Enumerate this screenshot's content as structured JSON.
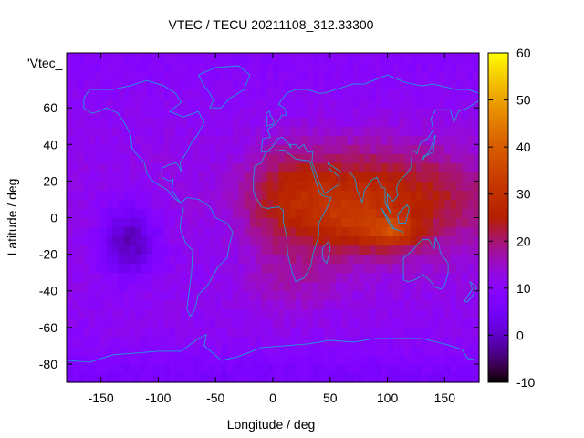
{
  "chart_data": {
    "type": "heatmap",
    "title": "VTEC / TECU 20211108_312.33300",
    "xlabel": "Longitude / deg",
    "ylabel": "Latitude / deg",
    "inset_label": "'Vtec_",
    "xlim": [
      -180,
      180
    ],
    "ylim": [
      -90,
      90
    ],
    "x_ticks": [
      -150,
      -100,
      -50,
      0,
      50,
      100,
      150
    ],
    "y_ticks": [
      60,
      40,
      20,
      0,
      -20,
      -40,
      -60,
      -80
    ],
    "colorbar": {
      "range": [
        -10,
        60
      ],
      "ticks": [
        60,
        50,
        40,
        30,
        20,
        10,
        0,
        -10
      ],
      "palette": "gnuplot pm3d rgbformulae 7,5,15 (black-blue-purple-red-orange-yellow)"
    },
    "grid": false,
    "background_level": 12,
    "features": [
      {
        "lon": 85,
        "lat": 10,
        "sx": 75,
        "sy": 20,
        "amp": 16
      },
      {
        "lon": 15,
        "lat": 10,
        "sx": 30,
        "sy": 18,
        "amp": 6
      },
      {
        "lon": 105,
        "lat": -8,
        "sx": 14,
        "sy": 6,
        "amp": 14
      },
      {
        "lon": 70,
        "lat": -5,
        "sx": 20,
        "sy": 10,
        "amp": 6
      },
      {
        "lon": 15,
        "lat": -35,
        "sx": 30,
        "sy": 15,
        "amp": 4
      },
      {
        "lon": -125,
        "lat": -12,
        "sx": 18,
        "sy": 14,
        "amp": -13
      },
      {
        "lon": -40,
        "lat": 5,
        "sx": 25,
        "sy": 25,
        "amp": -3
      },
      {
        "lon": 0,
        "lat": -85,
        "sx": 360,
        "sy": 8,
        "amp": -3
      }
    ],
    "coastline_color": "#1e9bd7"
  }
}
